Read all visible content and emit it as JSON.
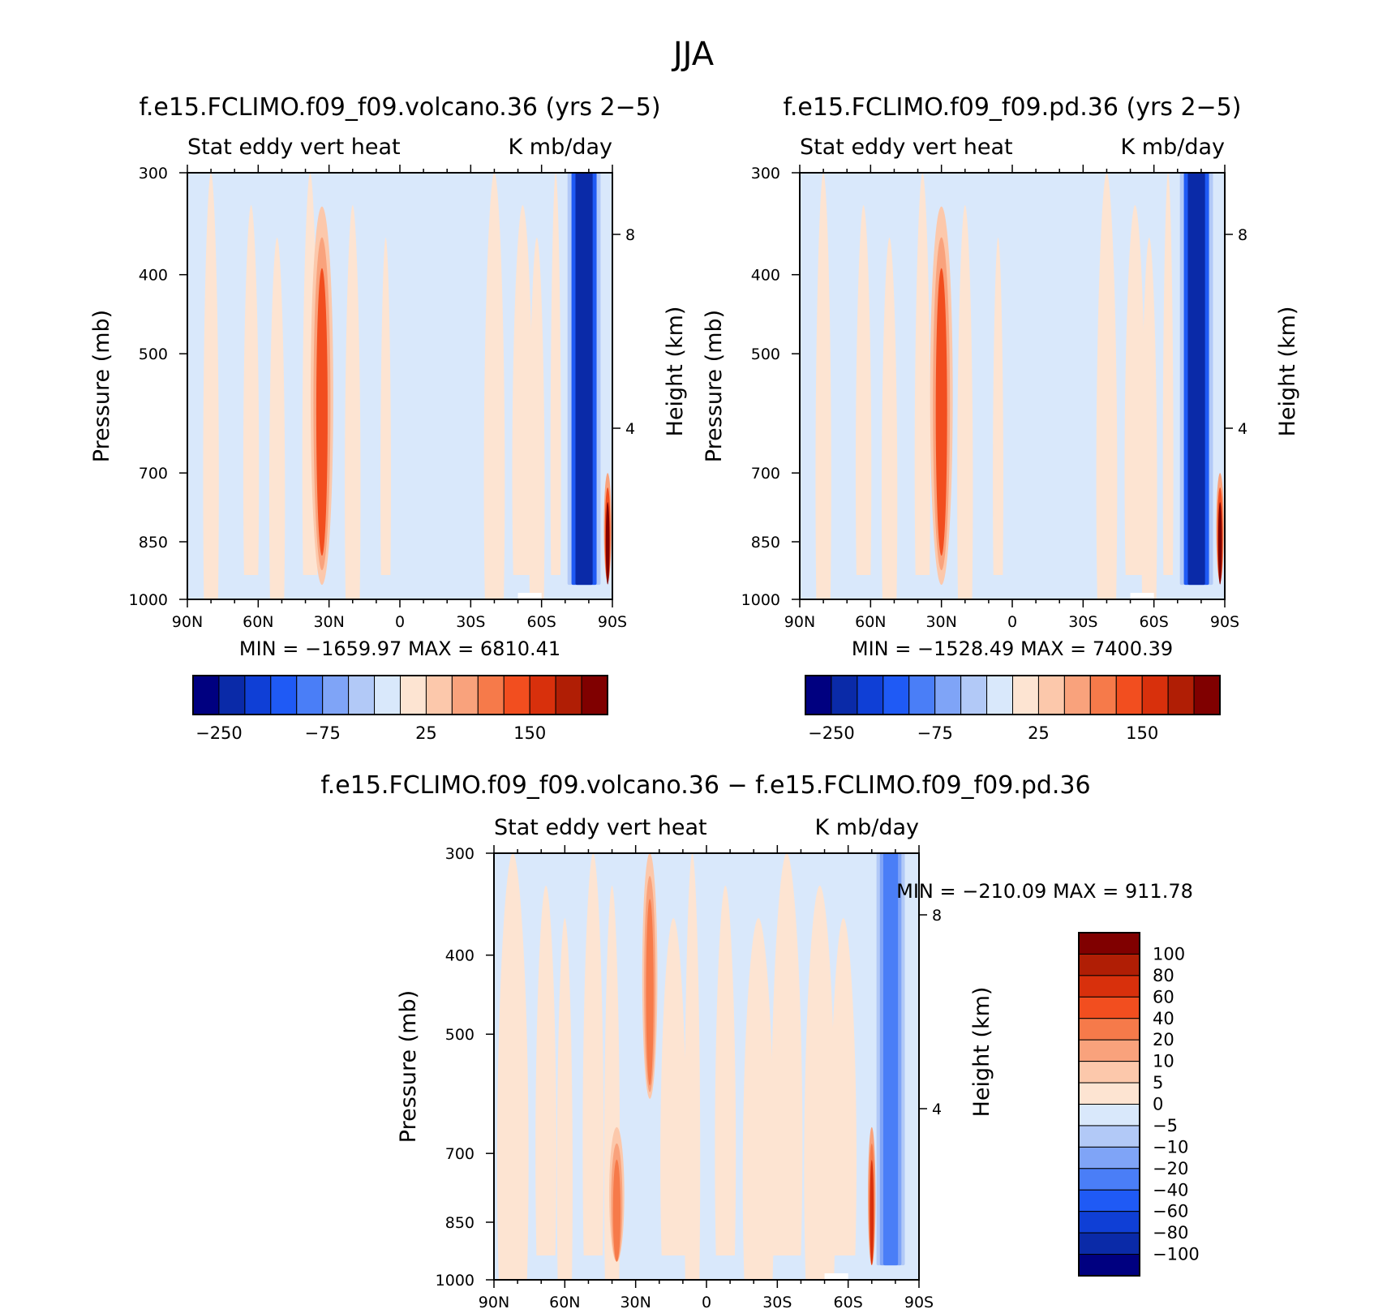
{
  "figure_title": "JJA",
  "chart_data": [
    {
      "type": "heatmap",
      "title": "f.e15.FCLIMO.f09_f09.volcano.36 (yrs 2−5)",
      "left_subtitle": "Stat  eddy  vert  heat",
      "right_subtitle": "K  mb/day",
      "ylabel": "Pressure  (mb)",
      "ylabel_right": "Height  (km)",
      "x_ticks": [
        "90N",
        "60N",
        "30N",
        "0",
        "30S",
        "60S",
        "90S"
      ],
      "y_ticks": [
        "300",
        "400",
        "500",
        "700",
        "850",
        "1000"
      ],
      "y_right_ticks": [
        "8",
        "4"
      ],
      "ylim": [
        1000,
        300
      ],
      "stats": "MIN  =  −1659.97    MAX  =  6810.41",
      "min": -1659.97,
      "max": 6810.41,
      "colorbar": {
        "orientation": "horizontal",
        "levels": [
          -250,
          -200,
          -150,
          -100,
          -75,
          -50,
          -25,
          0,
          25,
          50,
          75,
          100,
          125,
          150,
          200
        ],
        "tick_labels": [
          "−250",
          "−75",
          "25",
          "150"
        ],
        "colors": [
          "#000080",
          "#0a2aa8",
          "#0f3fd6",
          "#1f5af5",
          "#4a7ef7",
          "#7fa4f7",
          "#b2c9f7",
          "#d9e8fb",
          "#fde4d2",
          "#fcc8ab",
          "#f9a27c",
          "#f67a4a",
          "#f24e1f",
          "#d8300c",
          "#b01e05",
          "#800000"
        ]
      },
      "features": [
        {
          "lat": 33,
          "p_top": 330,
          "p_bot": 960,
          "lat_half_width": 3,
          "value": 100,
          "note": "warm column near 30N"
        },
        {
          "lat": -78,
          "p_top": 300,
          "p_bot": 960,
          "lat_half_width": 7,
          "value": -250,
          "note": "strong cooling band 65S-85S"
        },
        {
          "lat": -88,
          "p_top": 700,
          "p_bot": 950,
          "lat_half_width": 1,
          "value": 200,
          "note": "warm spike near 90S"
        }
      ]
    },
    {
      "type": "heatmap",
      "title": "f.e15.FCLIMO.f09_f09.pd.36 (yrs 2−5)",
      "left_subtitle": "Stat  eddy  vert  heat",
      "right_subtitle": "K  mb/day",
      "ylabel": "Pressure  (mb)",
      "ylabel_right": "Height  (km)",
      "x_ticks": [
        "90N",
        "60N",
        "30N",
        "0",
        "30S",
        "60S",
        "90S"
      ],
      "y_ticks": [
        "300",
        "400",
        "500",
        "700",
        "850",
        "1000"
      ],
      "y_right_ticks": [
        "8",
        "4"
      ],
      "ylim": [
        1000,
        300
      ],
      "stats": "MIN  =  −1528.49    MAX  =  7400.39",
      "min": -1528.49,
      "max": 7400.39,
      "colorbar": {
        "orientation": "horizontal",
        "levels": [
          -250,
          -200,
          -150,
          -100,
          -75,
          -50,
          -25,
          0,
          25,
          50,
          75,
          100,
          125,
          150,
          200
        ],
        "tick_labels": [
          "−250",
          "−75",
          "25",
          "150"
        ],
        "colors": [
          "#000080",
          "#0a2aa8",
          "#0f3fd6",
          "#1f5af5",
          "#4a7ef7",
          "#7fa4f7",
          "#b2c9f7",
          "#d9e8fb",
          "#fde4d2",
          "#fcc8ab",
          "#f9a27c",
          "#f67a4a",
          "#f24e1f",
          "#d8300c",
          "#b01e05",
          "#800000"
        ]
      },
      "features": [
        {
          "lat": 30,
          "p_top": 330,
          "p_bot": 960,
          "lat_half_width": 3,
          "value": 100,
          "note": "warm column near 30N"
        },
        {
          "lat": -78,
          "p_top": 300,
          "p_bot": 960,
          "lat_half_width": 7,
          "value": -250,
          "note": "strong cooling band 65S-85S"
        },
        {
          "lat": -88,
          "p_top": 700,
          "p_bot": 950,
          "lat_half_width": 1,
          "value": 200,
          "note": "warm spike near 90S"
        }
      ]
    },
    {
      "type": "heatmap",
      "title": "f.e15.FCLIMO.f09_f09.volcano.36  −  f.e15.FCLIMO.f09_f09.pd.36",
      "left_subtitle": "Stat  eddy  vert  heat",
      "right_subtitle": "K  mb/day",
      "ylabel": "Pressure  (mb)",
      "ylabel_right": "Height  (km)",
      "x_ticks": [
        "90N",
        "60N",
        "30N",
        "0",
        "30S",
        "60S",
        "90S"
      ],
      "y_ticks": [
        "300",
        "400",
        "500",
        "700",
        "850",
        "1000"
      ],
      "y_right_ticks": [
        "8",
        "4"
      ],
      "ylim": [
        1000,
        300
      ],
      "stats": "MIN  =  −210.09    MAX  =  911.78",
      "min": -210.09,
      "max": 911.78,
      "colorbar": {
        "orientation": "vertical",
        "levels": [
          100,
          80,
          60,
          40,
          20,
          10,
          5,
          0,
          -5,
          -10,
          -20,
          -40,
          -60,
          -80,
          -100
        ],
        "tick_labels": [
          "100",
          "80",
          "60",
          "40",
          "20",
          "10",
          "5",
          "0",
          "−5",
          "−10",
          "−20",
          "−40",
          "−60",
          "−80",
          "−100"
        ],
        "colors": [
          "#800000",
          "#b01e05",
          "#d8300c",
          "#f24e1f",
          "#f67a4a",
          "#f9a27c",
          "#fcc8ab",
          "#fde4d2",
          "#d9e8fb",
          "#b2c9f7",
          "#7fa4f7",
          "#4a7ef7",
          "#1f5af5",
          "#0f3fd6",
          "#0a2aa8",
          "#000080"
        ]
      },
      "features": [
        {
          "lat": -78,
          "p_top": 300,
          "p_bot": 960,
          "lat_half_width": 6,
          "value": -40,
          "note": "cooling band near 80S"
        },
        {
          "lat": -70,
          "p_top": 650,
          "p_bot": 960,
          "lat_half_width": 1,
          "value": 60,
          "note": "warm edge near 70S"
        },
        {
          "lat": 24,
          "p_top": 300,
          "p_bot": 600,
          "lat_half_width": 2,
          "value": 20,
          "note": "warm streak near 25N"
        },
        {
          "lat": 38,
          "p_top": 650,
          "p_bot": 950,
          "lat_half_width": 2,
          "value": 20,
          "note": "warm patch near 40N"
        }
      ]
    }
  ]
}
